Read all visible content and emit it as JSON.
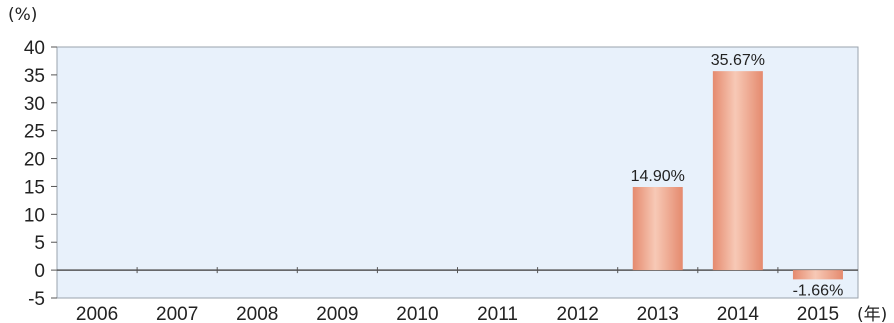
{
  "chart_data": {
    "type": "bar",
    "ylabel": "(%)",
    "xlabel": "(年)",
    "ylim": [
      -5,
      40
    ],
    "yticks": [
      -5,
      0,
      5,
      10,
      15,
      20,
      25,
      30,
      35,
      40
    ],
    "categories": [
      "2006",
      "2007",
      "2008",
      "2009",
      "2010",
      "2011",
      "2012",
      "2013",
      "2014",
      "2015"
    ],
    "values": [
      null,
      null,
      null,
      null,
      null,
      null,
      null,
      14.9,
      35.67,
      -1.66
    ],
    "data_labels": [
      "",
      "",
      "",
      "",
      "",
      "",
      "",
      "14.90%",
      "35.67%",
      "-1.66%"
    ],
    "grid": false,
    "colors": {
      "plot_background": "#e8f1fb",
      "bar": "#e58a6e",
      "bar_highlight": "#f7c9b6",
      "axis": "#555555",
      "frame": "#9aa3ad"
    }
  }
}
